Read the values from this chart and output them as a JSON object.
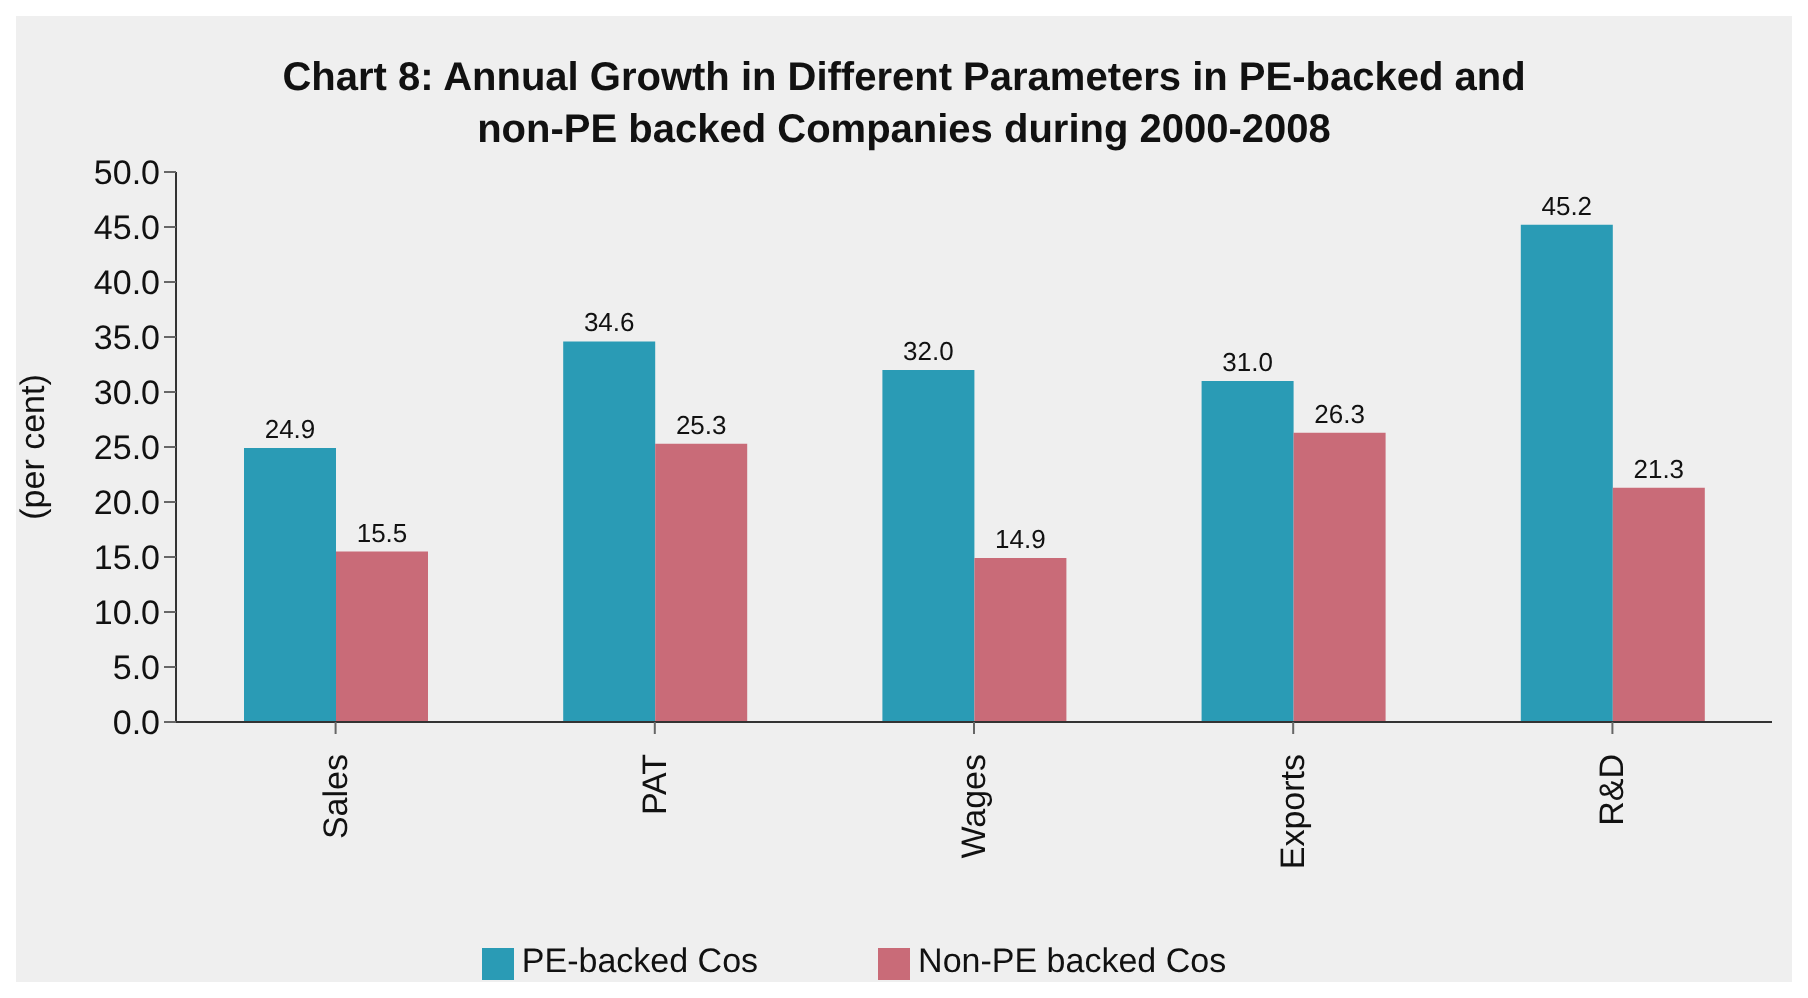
{
  "chart_data": {
    "type": "bar",
    "title": "Chart 8: Annual Growth in Different Parameters in PE-backed and non-PE backed Companies during 2000-2008",
    "ylabel": "(per cent)",
    "categories": [
      "Sales",
      "PAT",
      "Wages",
      "Exports",
      "R&D"
    ],
    "series": [
      {
        "name": "PE-backed Cos",
        "color": "#2a9bb5",
        "values": [
          24.9,
          34.6,
          32.0,
          31.0,
          45.2
        ],
        "value_labels": [
          "24.9",
          "34.6",
          "32.0",
          "31.0",
          "45.2"
        ]
      },
      {
        "name": "Non-PE backed Cos",
        "color": "#c96b78",
        "values": [
          15.5,
          25.3,
          14.9,
          26.3,
          21.3
        ],
        "value_labels": [
          "15.5",
          "25.3",
          "14.9",
          "26.3",
          "21.3"
        ]
      }
    ],
    "ylim": [
      0,
      50
    ],
    "yticks": [
      {
        "value": 0,
        "label": "0.0"
      },
      {
        "value": 5,
        "label": "5.0"
      },
      {
        "value": 10,
        "label": "10.0"
      },
      {
        "value": 15,
        "label": "15.0"
      },
      {
        "value": 20,
        "label": "20.0"
      },
      {
        "value": 25,
        "label": "25.0"
      },
      {
        "value": 30,
        "label": "30.0"
      },
      {
        "value": 35,
        "label": "35.0"
      },
      {
        "value": 40,
        "label": "40.0"
      },
      {
        "value": 45,
        "label": "45.0"
      },
      {
        "value": 50,
        "label": "50.0"
      }
    ],
    "grid": false,
    "legend": "bottom"
  }
}
